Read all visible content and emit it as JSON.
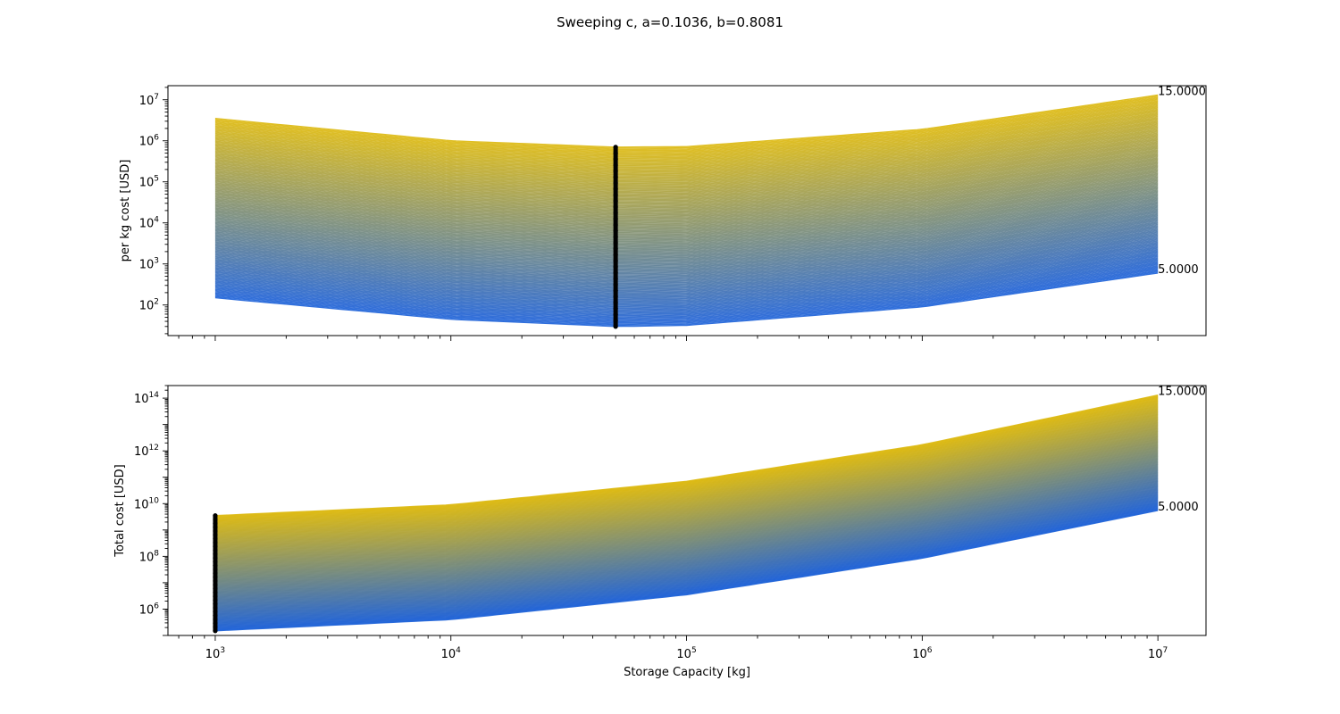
{
  "chart_data": {
    "suptitle": "Sweeping c, a=0.1036, b=0.8081",
    "colors": {
      "low": "#1a5fd8",
      "high": "#dcb80c",
      "marker": "#000000"
    },
    "shared_x": {
      "label": "Storage Capacity [kg]",
      "scale": "log",
      "lim": [
        630,
        16000000
      ],
      "tick_labels": [
        "10^3",
        "10^4",
        "10^5",
        "10^6",
        "10^7"
      ]
    },
    "panels": [
      {
        "type": "line",
        "ylabel": "per kg cost [USD]",
        "yscale": "log",
        "ylim": [
          18,
          22000000
        ],
        "ytick_labels": [
          "10^2",
          "10^3",
          "10^4",
          "10^5",
          "10^6",
          "10^7"
        ],
        "sweep": {
          "param": "c",
          "from": 5.0,
          "to": 15.0
        },
        "x_range": [
          1000,
          10000000
        ],
        "boundary_curves": [
          {
            "label": "5.0000",
            "x": [
              1000,
              10000,
              50000,
              100000,
              1000000,
              10000000
            ],
            "y": [
              150,
              45,
              30,
              32,
              90,
              600
            ]
          },
          {
            "label": "15.0000",
            "x": [
              1000,
              10000,
              50000,
              100000,
              1000000,
              10000000
            ],
            "y": [
              3500000,
              1000000,
              700000,
              720000,
              1900000,
              13000000
            ]
          }
        ],
        "end_labels": [
          "15.0000",
          "5.0000"
        ],
        "marker": {
          "x": 50000,
          "y_range": [
            30,
            700000
          ]
        }
      },
      {
        "type": "line",
        "ylabel": "Total cost [USD]",
        "yscale": "log",
        "ylim": [
          100000,
          300000000000000
        ],
        "ytick_labels": [
          "10^6",
          "10^8",
          "10^10",
          "10^12",
          "10^14"
        ],
        "sweep": {
          "param": "c",
          "from": 5.0,
          "to": 15.0
        },
        "x_range": [
          1000,
          10000000
        ],
        "boundary_curves": [
          {
            "label": "5.0000",
            "x": [
              1000,
              10000,
              100000,
              1000000,
              10000000
            ],
            "y": [
              150000,
              400000,
              3500000,
              85000000,
              5500000000
            ]
          },
          {
            "label": "15.0000",
            "x": [
              1000,
              10000,
              100000,
              1000000,
              10000000
            ],
            "y": [
              3500000000,
              9000000000,
              70000000000,
              1700000000000,
              130000000000000
            ]
          }
        ],
        "end_labels": [
          "15.0000",
          "5.0000"
        ],
        "marker": {
          "x": 1000,
          "y_range": [
            150000,
            3500000000
          ]
        }
      }
    ]
  }
}
